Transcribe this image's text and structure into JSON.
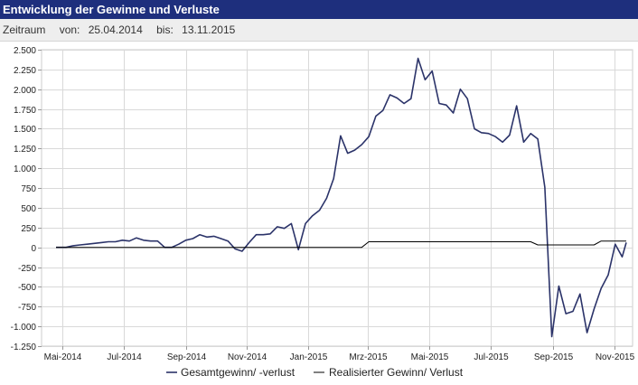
{
  "header": {
    "title": "Entwicklung der Gewinne und Verluste"
  },
  "period": {
    "label": "Zeitraum",
    "from_label": "von:",
    "from_value": "25.04.2014",
    "to_label": "bis:",
    "to_value": "13.11.2015"
  },
  "colors": {
    "header_bg": "#1e2f7d",
    "series1": "#2b3369",
    "series2": "#000000"
  },
  "chart_data": {
    "type": "line",
    "title": "Entwicklung der Gewinne und Verluste",
    "xlabel": "",
    "ylabel": "",
    "ylim": [
      -1250,
      2500
    ],
    "yticks": [
      -1250,
      -1000,
      -750,
      -500,
      -250,
      0,
      250,
      500,
      750,
      1000,
      1250,
      1500,
      1750,
      2000,
      2250,
      2500
    ],
    "ytick_labels": [
      "-1.250",
      "-1.000",
      "-750",
      "-500",
      "-250",
      "0",
      "250",
      "500",
      "750",
      "1.000",
      "1.250",
      "1.500",
      "1.750",
      "2.000",
      "2.250",
      "2.500"
    ],
    "xticks": [
      "2014-05-01",
      "2014-07-01",
      "2014-09-01",
      "2014-11-01",
      "2015-01-01",
      "2015-03-01",
      "2015-05-01",
      "2015-07-01",
      "2015-09-01",
      "2015-11-01"
    ],
    "xtick_labels": [
      "Mai-2014",
      "Jul-2014",
      "Sep-2014",
      "Nov-2014",
      "Jan-2015",
      "Mrz-2015",
      "Mai-2015",
      "Jul-2015",
      "Sep-2015",
      "Nov-2015"
    ],
    "xlim": [
      "2014-04-25",
      "2015-11-13"
    ],
    "grid": true,
    "legend_position": "bottom",
    "series": [
      {
        "name": "Gesamtgewinn/ -verlust",
        "points": [
          [
            "2014-04-25",
            0
          ],
          [
            "2014-05-05",
            0
          ],
          [
            "2014-05-12",
            20
          ],
          [
            "2014-05-19",
            30
          ],
          [
            "2014-05-26",
            40
          ],
          [
            "2014-06-02",
            50
          ],
          [
            "2014-06-09",
            60
          ],
          [
            "2014-06-16",
            70
          ],
          [
            "2014-06-23",
            70
          ],
          [
            "2014-06-30",
            90
          ],
          [
            "2014-07-07",
            80
          ],
          [
            "2014-07-14",
            120
          ],
          [
            "2014-07-21",
            90
          ],
          [
            "2014-07-28",
            80
          ],
          [
            "2014-08-04",
            80
          ],
          [
            "2014-08-11",
            0
          ],
          [
            "2014-08-18",
            0
          ],
          [
            "2014-08-25",
            40
          ],
          [
            "2014-09-01",
            90
          ],
          [
            "2014-09-08",
            110
          ],
          [
            "2014-09-15",
            160
          ],
          [
            "2014-09-22",
            130
          ],
          [
            "2014-09-29",
            140
          ],
          [
            "2014-10-06",
            110
          ],
          [
            "2014-10-13",
            80
          ],
          [
            "2014-10-20",
            -20
          ],
          [
            "2014-10-27",
            -50
          ],
          [
            "2014-11-03",
            60
          ],
          [
            "2014-11-10",
            160
          ],
          [
            "2014-11-17",
            160
          ],
          [
            "2014-11-24",
            170
          ],
          [
            "2014-12-01",
            260
          ],
          [
            "2014-12-08",
            240
          ],
          [
            "2014-12-15",
            300
          ],
          [
            "2014-12-22",
            -30
          ],
          [
            "2014-12-29",
            300
          ],
          [
            "2015-01-05",
            400
          ],
          [
            "2015-01-12",
            470
          ],
          [
            "2015-01-19",
            620
          ],
          [
            "2015-01-26",
            870
          ],
          [
            "2015-02-02",
            1410
          ],
          [
            "2015-02-09",
            1190
          ],
          [
            "2015-02-16",
            1230
          ],
          [
            "2015-02-23",
            1300
          ],
          [
            "2015-03-02",
            1400
          ],
          [
            "2015-03-09",
            1660
          ],
          [
            "2015-03-16",
            1730
          ],
          [
            "2015-03-23",
            1930
          ],
          [
            "2015-03-30",
            1890
          ],
          [
            "2015-04-06",
            1820
          ],
          [
            "2015-04-13",
            1880
          ],
          [
            "2015-04-20",
            2390
          ],
          [
            "2015-04-27",
            2120
          ],
          [
            "2015-05-04",
            2230
          ],
          [
            "2015-05-11",
            1820
          ],
          [
            "2015-05-18",
            1800
          ],
          [
            "2015-05-25",
            1700
          ],
          [
            "2015-06-01",
            2000
          ],
          [
            "2015-06-08",
            1880
          ],
          [
            "2015-06-15",
            1500
          ],
          [
            "2015-06-22",
            1450
          ],
          [
            "2015-06-29",
            1440
          ],
          [
            "2015-07-06",
            1400
          ],
          [
            "2015-07-13",
            1330
          ],
          [
            "2015-07-20",
            1420
          ],
          [
            "2015-07-27",
            1790
          ],
          [
            "2015-08-03",
            1330
          ],
          [
            "2015-08-10",
            1440
          ],
          [
            "2015-08-17",
            1370
          ],
          [
            "2015-08-24",
            760
          ],
          [
            "2015-08-31",
            -1130
          ],
          [
            "2015-09-07",
            -490
          ],
          [
            "2015-09-14",
            -840
          ],
          [
            "2015-09-21",
            -810
          ],
          [
            "2015-09-28",
            -590
          ],
          [
            "2015-10-05",
            -1080
          ],
          [
            "2015-10-12",
            -780
          ],
          [
            "2015-10-19",
            -520
          ],
          [
            "2015-10-26",
            -350
          ],
          [
            "2015-11-02",
            40
          ],
          [
            "2015-11-09",
            -120
          ],
          [
            "2015-11-13",
            60
          ]
        ]
      },
      {
        "name": "Realisierter Gewinn/ Verlust",
        "points": [
          [
            "2014-04-25",
            0
          ],
          [
            "2015-02-23",
            0
          ],
          [
            "2015-03-02",
            70
          ],
          [
            "2015-04-01",
            70
          ],
          [
            "2015-07-01",
            70
          ],
          [
            "2015-08-10",
            70
          ],
          [
            "2015-08-17",
            30
          ],
          [
            "2015-10-12",
            30
          ],
          [
            "2015-10-19",
            80
          ],
          [
            "2015-11-13",
            80
          ]
        ]
      }
    ]
  }
}
